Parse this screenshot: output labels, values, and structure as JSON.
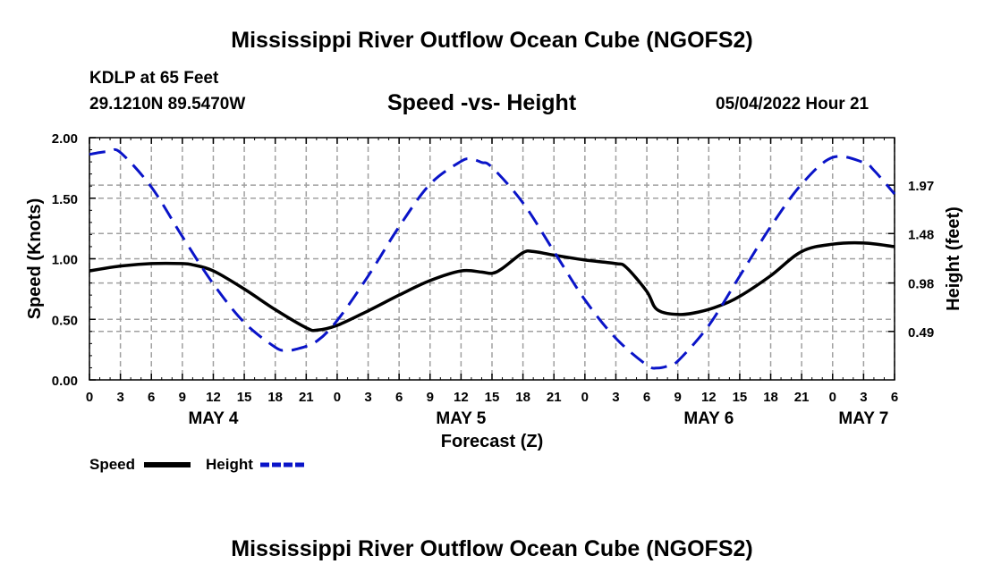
{
  "header": {
    "title": "Mississippi River Outflow Ocean Cube (NGOFS2)",
    "station": "KDLP at 65 Feet",
    "coords": "29.1210N  89.5470W",
    "subtitle": "Speed -vs- Height",
    "datetime": "05/04/2022 Hour 21"
  },
  "footer": {
    "title": "Mississippi River Outflow Ocean Cube (NGOFS2)"
  },
  "colors": {
    "speed": "#000000",
    "height": "#0a14c8",
    "grid": "#a0a0a0"
  },
  "chart_data": {
    "type": "line",
    "xlabel": "Forecast (Z)",
    "ylabel": "Speed (Knots)",
    "y2label": "Height (feet)",
    "xlim": [
      0,
      78
    ],
    "ylim": [
      0,
      2
    ],
    "y2lim": [
      0,
      2.45
    ],
    "grid": true,
    "x_tick_labels": [
      "0",
      "3",
      "6",
      "9",
      "12",
      "15",
      "18",
      "21",
      "0",
      "3",
      "6",
      "9",
      "12",
      "15",
      "18",
      "21",
      "0",
      "3",
      "6",
      "9",
      "12",
      "15",
      "18",
      "21",
      "0",
      "3",
      "6"
    ],
    "y_ticks": [
      0,
      0.5,
      1,
      1.5,
      2
    ],
    "y_tick_labels": [
      "0.00",
      "0.50",
      "1.00",
      "1.50",
      "2.00"
    ],
    "y2_ticks": [
      0.49,
      0.98,
      1.48,
      1.97
    ],
    "y2_tick_labels": [
      "0.49",
      "0.98",
      "1.48",
      "1.97"
    ],
    "date_labels": [
      {
        "label": "MAY 4",
        "x": 12
      },
      {
        "label": "MAY 5",
        "x": 36
      },
      {
        "label": "MAY 6",
        "x": 60
      },
      {
        "label": "MAY 7",
        "x": 75
      }
    ],
    "series": [
      {
        "name": "Speed",
        "axis": "left",
        "x": [
          0,
          3,
          6,
          9,
          10,
          12,
          15,
          18,
          21,
          22,
          24,
          27,
          30,
          33,
          36,
          38,
          39,
          40,
          42,
          43,
          45,
          48,
          51,
          52,
          54,
          55,
          57,
          59,
          61,
          63,
          66,
          69,
          72,
          75,
          78
        ],
        "values": [
          0.9,
          0.94,
          0.96,
          0.96,
          0.95,
          0.9,
          0.75,
          0.58,
          0.43,
          0.41,
          0.45,
          0.57,
          0.7,
          0.82,
          0.9,
          0.89,
          0.88,
          0.92,
          1.05,
          1.06,
          1.03,
          0.99,
          0.96,
          0.93,
          0.73,
          0.58,
          0.54,
          0.56,
          0.61,
          0.69,
          0.86,
          1.06,
          1.12,
          1.13,
          1.1
        ]
      },
      {
        "name": "Height",
        "axis": "right",
        "x": [
          0,
          1,
          2,
          3,
          6,
          9,
          12,
          15,
          18,
          19,
          20,
          22,
          24,
          27,
          30,
          33,
          36,
          37,
          38,
          39,
          42,
          45,
          48,
          51,
          54,
          55,
          56,
          57,
          60,
          63,
          66,
          69,
          72,
          75,
          76,
          78
        ],
        "values": [
          2.28,
          2.3,
          2.31,
          2.3,
          1.95,
          1.45,
          0.97,
          0.58,
          0.33,
          0.3,
          0.31,
          0.39,
          0.6,
          1.05,
          1.55,
          1.98,
          2.21,
          2.23,
          2.2,
          2.15,
          1.79,
          1.3,
          0.81,
          0.42,
          0.15,
          0.12,
          0.14,
          0.19,
          0.55,
          1.05,
          1.55,
          1.98,
          2.25,
          2.2,
          2.12,
          1.88
        ]
      }
    ],
    "legend": [
      {
        "label": "Speed",
        "style": "solid"
      },
      {
        "label": "Height",
        "style": "dashed"
      }
    ],
    "legend_position": "bottom-left"
  }
}
